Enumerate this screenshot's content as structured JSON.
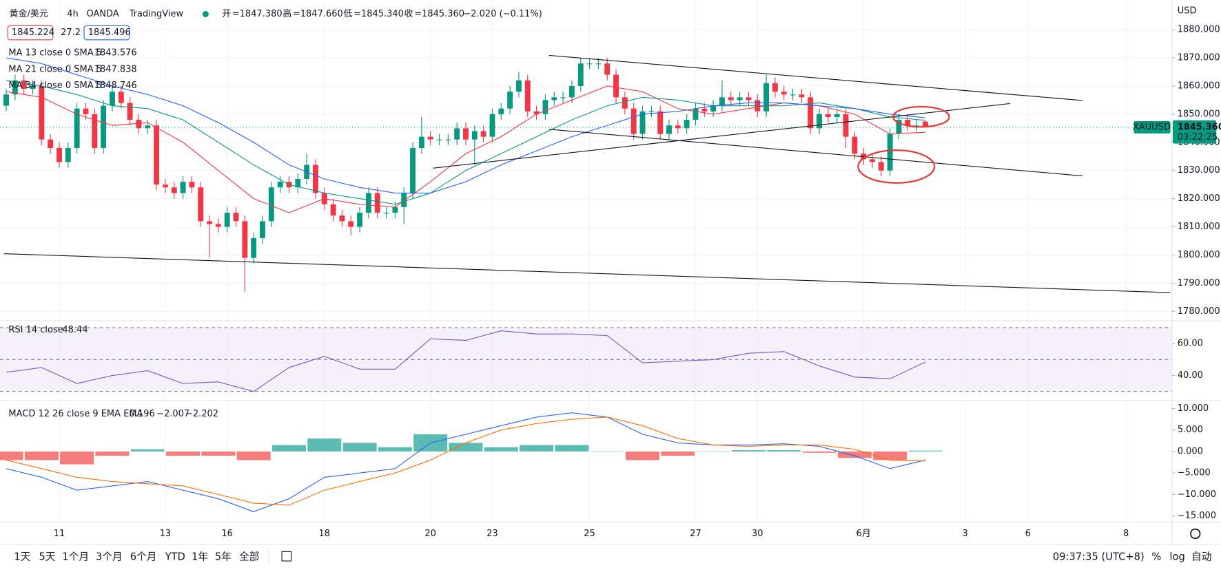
{
  "header": {
    "symbol": "黄金/美元",
    "interval": "4h",
    "exchange": "OANDA",
    "platform": "TradingView",
    "quote": [
      {
        "label": "开",
        "value": "=1847.380"
      },
      {
        "label": "高",
        "value": "=1847.660"
      },
      {
        "label": "低",
        "value": "=1845.340"
      },
      {
        "label": "收",
        "value": "=1845.360"
      }
    ],
    "change": "−2.020 (−0.11%)",
    "bid": "1845.224",
    "spread": "27.2",
    "ask": "1845.496"
  },
  "chart_data": [
    {
      "type": "candlestick",
      "currency": "USD",
      "up_color": "#089981",
      "down_color": "#f23645",
      "open": [
        1853,
        1857,
        1862,
        1859,
        1860,
        1841,
        1838,
        1833,
        1838,
        1852,
        1850,
        1838,
        1853,
        1858,
        1854,
        1848,
        1845,
        1846,
        1825,
        1824,
        1822,
        1826,
        1824,
        1812,
        1811,
        1810,
        1815,
        1812,
        1799,
        1806,
        1812,
        1824,
        1826,
        1824,
        1827,
        1832,
        1822,
        1818,
        1814,
        1812,
        1810,
        1815,
        1822,
        1815,
        1815,
        1817,
        1822,
        1838,
        1842,
        1841,
        1841,
        1841,
        1845,
        1841,
        1844,
        1842,
        1850,
        1852,
        1858,
        1862,
        1851,
        1850,
        1855,
        1856,
        1856,
        1860,
        1868,
        1868,
        1868,
        1864,
        1856,
        1852,
        1843,
        1851,
        1851,
        1843,
        1846,
        1845,
        1848,
        1852,
        1851,
        1853,
        1856,
        1855,
        1856,
        1855,
        1851,
        1861,
        1858,
        1857,
        1857,
        1856,
        1845,
        1850,
        1849,
        1850,
        1842,
        1836,
        1834,
        1833,
        1830,
        1843,
        1848,
        1846,
        1847.38
      ],
      "high": [
        1859,
        1864,
        1864,
        1862,
        1862,
        1843,
        1840,
        1840,
        1854,
        1854,
        1852,
        1855,
        1860,
        1860,
        1856,
        1850,
        1848,
        1848,
        1827,
        1826,
        1828,
        1828,
        1826,
        1814,
        1813,
        1817,
        1817,
        1814,
        1808,
        1814,
        1826,
        1828,
        1828,
        1829,
        1836,
        1834,
        1824,
        1820,
        1816,
        1814,
        1817,
        1824,
        1824,
        1817,
        1819,
        1824,
        1840,
        1849,
        1844,
        1843,
        1843,
        1847,
        1847,
        1846,
        1846,
        1852,
        1854,
        1860,
        1865,
        1864,
        1853,
        1857,
        1858,
        1858,
        1862,
        1870,
        1870,
        1870,
        1870,
        1866,
        1858,
        1854,
        1853,
        1853,
        1853,
        1848,
        1848,
        1850,
        1854,
        1854,
        1855,
        1862,
        1858,
        1858,
        1858,
        1857,
        1864,
        1863,
        1860,
        1859,
        1859,
        1858,
        1852,
        1852,
        1852,
        1852,
        1844,
        1838,
        1836,
        1835,
        1845,
        1850,
        1850,
        1848,
        1847.66
      ],
      "low": [
        1851,
        1855,
        1857,
        1857,
        1839,
        1836,
        1831,
        1831,
        1836,
        1848,
        1836,
        1836,
        1851,
        1852,
        1846,
        1843,
        1843,
        1823,
        1822,
        1820,
        1820,
        1822,
        1810,
        1799,
        1808,
        1808,
        1810,
        1787,
        1797,
        1804,
        1810,
        1822,
        1822,
        1822,
        1825,
        1820,
        1816,
        1812,
        1810,
        1807,
        1808,
        1813,
        1813,
        1813,
        1813,
        1811,
        1820,
        1836,
        1839,
        1839,
        1839,
        1839,
        1839,
        1832,
        1840,
        1840,
        1848,
        1850,
        1856,
        1849,
        1848,
        1848,
        1853,
        1854,
        1854,
        1858,
        1866,
        1866,
        1862,
        1854,
        1850,
        1841,
        1841,
        1849,
        1841,
        1841,
        1843,
        1843,
        1846,
        1849,
        1849,
        1851,
        1853,
        1853,
        1853,
        1849,
        1849,
        1856,
        1855,
        1855,
        1854,
        1843,
        1843,
        1847,
        1847,
        1838,
        1834,
        1832,
        1831,
        1828,
        1828,
        1841,
        1844,
        1844,
        1845.34
      ],
      "close": [
        1857,
        1862,
        1859,
        1860,
        1841,
        1838,
        1833,
        1838,
        1852,
        1850,
        1838,
        1853,
        1858,
        1854,
        1848,
        1845,
        1846,
        1825,
        1824,
        1822,
        1826,
        1824,
        1812,
        1811,
        1810,
        1815,
        1812,
        1799,
        1806,
        1812,
        1824,
        1826,
        1824,
        1827,
        1832,
        1822,
        1818,
        1814,
        1812,
        1810,
        1815,
        1822,
        1815,
        1815,
        1817,
        1822,
        1838,
        1842,
        1841,
        1841,
        1841,
        1845,
        1841,
        1844,
        1842,
        1850,
        1852,
        1858,
        1862,
        1851,
        1850,
        1855,
        1856,
        1856,
        1860,
        1868,
        1868,
        1868,
        1864,
        1856,
        1852,
        1843,
        1851,
        1851,
        1843,
        1846,
        1845,
        1848,
        1852,
        1851,
        1853,
        1856,
        1855,
        1856,
        1855,
        1851,
        1861,
        1858,
        1857,
        1857,
        1856,
        1845,
        1850,
        1849,
        1850,
        1842,
        1836,
        1834,
        1833,
        1830,
        1843,
        1848,
        1846,
        1846,
        1845.36
      ],
      "xlim": [
        -0.705,
        131.9
      ],
      "xticks": [
        {
          "value": 6,
          "label": "11"
        },
        {
          "value": 18,
          "label": "13"
        },
        {
          "value": 25,
          "label": "16"
        },
        {
          "value": 36,
          "label": "18"
        },
        {
          "value": 48,
          "label": "20"
        },
        {
          "value": 55,
          "label": "23"
        },
        {
          "value": 66,
          "label": "25"
        },
        {
          "value": 78,
          "label": "27"
        },
        {
          "value": 85,
          "label": "30"
        },
        {
          "value": 97,
          "label": "6月"
        },
        {
          "value": 108.5,
          "label": "3"
        },
        {
          "value": 115.6,
          "label": "6"
        },
        {
          "value": 126.7,
          "label": "8"
        }
      ],
      "ylim": [
        1776.7,
        1890.5
      ],
      "yticks": [
        {
          "value": 1780,
          "label": "1780.000"
        },
        {
          "value": 1790,
          "label": "1790.000"
        },
        {
          "value": 1800,
          "label": "1800.000"
        },
        {
          "value": 1810,
          "label": "1810.000"
        },
        {
          "value": 1820,
          "label": "1820.000"
        },
        {
          "value": 1830,
          "label": "1830.000"
        },
        {
          "value": 1840,
          "label": "1840.000"
        },
        {
          "value": 1850,
          "label": "1850.000"
        },
        {
          "value": 1860,
          "label": "1860.000"
        },
        {
          "value": 1870,
          "label": "1870.000"
        },
        {
          "value": 1880,
          "label": "1880.000"
        }
      ],
      "grid": true,
      "last_price": {
        "symbol": "XAUUSD",
        "price": "1845.360",
        "countdown": "03:22:25",
        "color": "#089981"
      },
      "series": [
        {
          "name": "MA 13 close 0 SMA 5",
          "color": "#f23645",
          "value_label": "1843.576",
          "x": [
            0,
            4,
            8,
            12,
            16,
            20,
            24,
            28,
            32,
            36,
            40,
            44,
            48,
            52,
            56,
            60,
            64,
            68,
            72,
            76,
            80,
            84,
            88,
            92,
            96,
            100,
            104
          ],
          "values": [
            1858,
            1856,
            1850,
            1846,
            1847,
            1840,
            1830,
            1820,
            1815,
            1820,
            1818,
            1817,
            1826,
            1836,
            1842,
            1850,
            1855,
            1860,
            1858,
            1852,
            1850,
            1852,
            1854,
            1853,
            1850,
            1843,
            1843.576
          ]
        },
        {
          "name": "MA 21 close 0 SMA 5",
          "color": "#089981",
          "value_label": "1847.838",
          "x": [
            0,
            4,
            8,
            12,
            16,
            20,
            24,
            28,
            32,
            36,
            40,
            44,
            48,
            52,
            56,
            60,
            64,
            68,
            72,
            76,
            80,
            84,
            88,
            92,
            96,
            100,
            104
          ],
          "values": [
            1862,
            1860,
            1857,
            1853,
            1852,
            1848,
            1840,
            1832,
            1825,
            1822,
            1820,
            1818,
            1822,
            1830,
            1836,
            1842,
            1848,
            1853,
            1856,
            1855,
            1853,
            1853,
            1853,
            1854,
            1852,
            1849,
            1847.838
          ]
        },
        {
          "name": "MA 34 close 0 SMA 5",
          "color": "#2962ff",
          "value_label": "1848.746",
          "x": [
            0,
            4,
            8,
            12,
            16,
            20,
            24,
            28,
            32,
            36,
            40,
            44,
            48,
            52,
            56,
            60,
            64,
            68,
            72,
            76,
            80,
            84,
            88,
            92,
            96,
            100,
            104
          ],
          "values": [
            1870,
            1868,
            1864,
            1860,
            1857,
            1853,
            1847,
            1840,
            1832,
            1827,
            1824,
            1822,
            1822,
            1826,
            1832,
            1837,
            1842,
            1846,
            1850,
            1851,
            1853,
            1854,
            1854,
            1853,
            1852,
            1850,
            1848.746
          ]
        }
      ]
    },
    {
      "type": "line",
      "ylim": [
        24.2,
        74.4
      ],
      "yticks": [
        {
          "value": 40,
          "label": "40.00"
        },
        {
          "value": 60,
          "label": "60.00"
        }
      ],
      "levels": [
        70,
        50,
        30
      ],
      "band_color": "#ede7f6",
      "series": [
        {
          "name": "RSI 14 close",
          "color": "#7e57c2",
          "value_label": "48.44",
          "x": [
            0,
            4,
            8,
            12,
            16,
            20,
            24,
            28,
            32,
            36,
            40,
            44,
            48,
            52,
            56,
            60,
            64,
            68,
            72,
            76,
            80,
            84,
            88,
            92,
            96,
            100,
            104
          ],
          "values": [
            42,
            45,
            35,
            40,
            43,
            35,
            36,
            30,
            45,
            52,
            44,
            44,
            63,
            62,
            68,
            66,
            66,
            65,
            48,
            49,
            50,
            54,
            55,
            46,
            39,
            38,
            48.44
          ]
        }
      ]
    },
    {
      "type": "macd",
      "name": "MACD 12 26 close 9 EMA EMA",
      "ylim": [
        -16.6,
        11.8
      ],
      "yticks": [
        {
          "value": -15,
          "label": "−15.000"
        },
        {
          "value": -10,
          "label": "−10.000"
        },
        {
          "value": -5,
          "label": "−5.000"
        },
        {
          "value": 0,
          "label": "0.000"
        },
        {
          "value": 5,
          "label": "5.000"
        },
        {
          "value": 10,
          "label": "10.000"
        }
      ],
      "x": [
        0,
        4,
        8,
        12,
        16,
        20,
        24,
        28,
        32,
        36,
        40,
        44,
        48,
        52,
        56,
        60,
        64,
        68,
        72,
        76,
        80,
        84,
        88,
        92,
        96,
        100,
        104
      ],
      "histogram": {
        "up_color": "#26a69a",
        "down_color": "#ef5350",
        "value_label": "0.196",
        "values": [
          -2,
          -2,
          -3,
          -1,
          0.5,
          -1,
          -1,
          -2,
          1.5,
          3,
          2,
          1,
          4,
          2,
          1,
          1.5,
          1.5,
          0,
          -2,
          -1,
          0,
          0.3,
          0.3,
          -0.3,
          -1.5,
          -2,
          0.196
        ]
      },
      "series": [
        {
          "color": "#2962ff",
          "value_label": "−2.007",
          "values": [
            -4,
            -6,
            -9,
            -8,
            -7,
            -9,
            -11,
            -14,
            -11,
            -6,
            -5,
            -4,
            2,
            4,
            6,
            8,
            9,
            8,
            4,
            2,
            1.5,
            1.5,
            1.8,
            1.2,
            -1,
            -4,
            -2.007
          ]
        },
        {
          "color": "#ff6d00",
          "value_label": "−2.202",
          "values": [
            -2,
            -4,
            -6,
            -7,
            -7.5,
            -8,
            -10,
            -12,
            -12.5,
            -9,
            -7,
            -5,
            -2,
            2,
            5,
            6.5,
            7.5,
            8,
            6,
            3,
            1.5,
            1.2,
            1.5,
            1.5,
            0.5,
            -2,
            -2.202
          ]
        }
      ]
    }
  ],
  "toolbar": {
    "ranges": [
      "1天",
      "5天",
      "1个月",
      "3个月",
      "6个月",
      "YTD",
      "1年",
      "5年",
      "全部"
    ],
    "time": "09:37:35 (UTC+8)",
    "options": [
      "%",
      "log",
      "自动"
    ]
  }
}
